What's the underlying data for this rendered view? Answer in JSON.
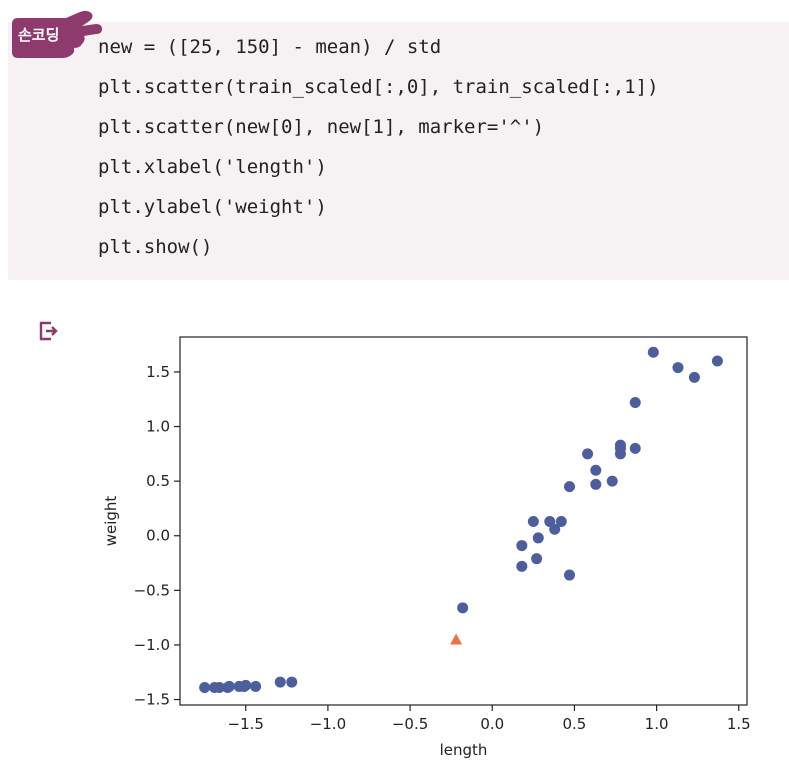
{
  "badge": {
    "label": "손코딩",
    "color": "#8e3a6e"
  },
  "code": {
    "lines": [
      "new = ([25, 150] - mean) / std",
      "plt.scatter(train_scaled[:,0], train_scaled[:,1])",
      "plt.scatter(new[0], new[1], marker='^')",
      "plt.xlabel('length')",
      "plt.ylabel('weight')",
      "plt.show()"
    ]
  },
  "output_icon": "output-arrow-icon",
  "chart_data": {
    "type": "scatter",
    "xlabel": "length",
    "ylabel": "weight",
    "xlim": [
      -1.9,
      1.55
    ],
    "ylim": [
      -1.55,
      1.82
    ],
    "x_ticks": [
      -1.5,
      -1.0,
      -0.5,
      0.0,
      0.5,
      1.0,
      1.5
    ],
    "x_tick_labels": [
      "−1.5",
      "−1.0",
      "−0.5",
      "0.0",
      "0.5",
      "1.0",
      "1.5"
    ],
    "y_ticks": [
      -1.5,
      -1.0,
      -0.5,
      0.0,
      0.5,
      1.0,
      1.5
    ],
    "y_tick_labels": [
      "−1.5",
      "−1.0",
      "−0.5",
      "0.0",
      "0.5",
      "1.0",
      "1.5"
    ],
    "grid": false,
    "series": [
      {
        "marker": "circle",
        "color": "#4c5f9c",
        "points": [
          [
            -1.75,
            -1.39
          ],
          [
            -1.69,
            -1.39
          ],
          [
            -1.66,
            -1.39
          ],
          [
            -1.61,
            -1.39
          ],
          [
            -1.6,
            -1.38
          ],
          [
            -1.54,
            -1.38
          ],
          [
            -1.51,
            -1.38
          ],
          [
            -1.5,
            -1.37
          ],
          [
            -1.44,
            -1.38
          ],
          [
            -1.29,
            -1.34
          ],
          [
            -1.22,
            -1.34
          ],
          [
            -0.18,
            -0.66
          ],
          [
            0.18,
            -0.28
          ],
          [
            0.18,
            -0.09
          ],
          [
            0.25,
            0.13
          ],
          [
            0.27,
            -0.21
          ],
          [
            0.28,
            -0.02
          ],
          [
            0.35,
            0.13
          ],
          [
            0.38,
            0.06
          ],
          [
            0.42,
            0.13
          ],
          [
            0.47,
            -0.36
          ],
          [
            0.47,
            0.45
          ],
          [
            0.58,
            0.75
          ],
          [
            0.63,
            0.6
          ],
          [
            0.63,
            0.47
          ],
          [
            0.73,
            0.5
          ],
          [
            0.78,
            0.75
          ],
          [
            0.78,
            0.8
          ],
          [
            0.78,
            0.83
          ],
          [
            0.87,
            0.8
          ],
          [
            0.87,
            1.22
          ],
          [
            0.98,
            1.68
          ],
          [
            1.13,
            1.54
          ],
          [
            1.23,
            1.45
          ],
          [
            1.37,
            1.6
          ]
        ]
      },
      {
        "marker": "triangle",
        "color": "#e8734a",
        "points": [
          [
            -0.22,
            -0.95
          ]
        ]
      }
    ]
  }
}
